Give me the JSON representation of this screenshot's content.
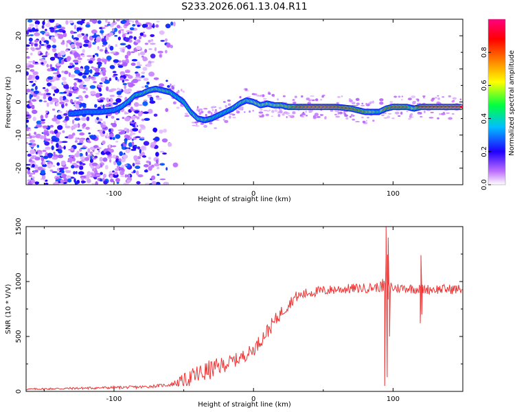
{
  "title": "S233.2026.061.13.04.R11",
  "chart_data": [
    {
      "type": "heatmap",
      "name": "spectrogram",
      "xlabel": "Height of straight line (km)",
      "ylabel": "Frequency (Hz)",
      "xlim": [
        -163,
        150
      ],
      "ylim": [
        -25,
        25
      ],
      "xticks": [
        -100,
        0,
        100
      ],
      "yticks": [
        -20,
        -10,
        0,
        10,
        20
      ],
      "colorbar": {
        "label": "Normalized spectral amplitude",
        "range": [
          0.0,
          1.0
        ],
        "ticks": [
          0.0,
          0.2,
          0.4,
          0.6,
          0.8
        ],
        "colors": [
          "#ffffff",
          "#c070ff",
          "#2000ff",
          "#00c0ff",
          "#00ff40",
          "#ffff00",
          "#ff8000",
          "#ff0000",
          "#ff0080"
        ]
      },
      "ridge": {
        "x": [
          -130,
          -120,
          -110,
          -100,
          -95,
          -90,
          -85,
          -80,
          -75,
          -70,
          -65,
          -60,
          -55,
          -50,
          -45,
          -40,
          -35,
          -30,
          -25,
          -20,
          -15,
          -10,
          -5,
          0,
          5,
          10,
          15,
          20,
          25,
          30,
          40,
          50,
          60,
          70,
          75,
          80,
          85,
          90,
          95,
          100,
          105,
          110,
          115,
          120,
          130,
          140,
          148
        ],
        "y": [
          -3.5,
          -3,
          -3,
          -2.5,
          -1.5,
          0,
          2,
          2.5,
          3.5,
          4,
          3.5,
          3,
          1.5,
          0,
          -3,
          -5,
          -5.5,
          -5,
          -4,
          -3,
          -2,
          -0.5,
          0.5,
          0,
          -1,
          -0.5,
          -1,
          -1,
          -1.5,
          -1.5,
          -1.5,
          -1.5,
          -1.5,
          -2,
          -2.5,
          -3,
          -3,
          -3,
          -2,
          -1.5,
          -1.5,
          -1.5,
          -2,
          -1.5,
          -1.5,
          -1.5,
          -1.5
        ],
        "amplitude": [
          0.25,
          0.3,
          0.3,
          0.3,
          0.35,
          0.45,
          0.5,
          0.5,
          0.55,
          0.55,
          0.55,
          0.5,
          0.45,
          0.45,
          0.5,
          0.55,
          0.55,
          0.5,
          0.45,
          0.45,
          0.5,
          0.55,
          0.55,
          0.6,
          0.6,
          0.6,
          0.6,
          0.65,
          0.7,
          0.85,
          0.95,
          0.95,
          0.9,
          0.85,
          0.8,
          0.75,
          0.6,
          0.5,
          0.8,
          0.85,
          0.85,
          0.8,
          0.6,
          0.9,
          0.95,
          0.95,
          0.95
        ]
      }
    },
    {
      "type": "line",
      "name": "snr",
      "xlabel": "Height of straight line (km)",
      "ylabel": "SNR (10 * V/V)",
      "xlim": [
        -163,
        150
      ],
      "ylim": [
        0,
        1500
      ],
      "xticks": [
        -100,
        0,
        100
      ],
      "yticks": [
        0,
        500,
        1000,
        1500
      ],
      "color": "#ee3333",
      "envelope": {
        "x": [
          -163,
          -120,
          -80,
          -60,
          -50,
          -40,
          -30,
          -20,
          -10,
          0,
          10,
          20,
          30,
          40,
          60,
          80,
          90,
          95,
          100,
          110,
          120,
          130,
          150
        ],
        "y": [
          20,
          30,
          40,
          60,
          100,
          150,
          200,
          250,
          300,
          380,
          550,
          720,
          860,
          900,
          930,
          940,
          950,
          960,
          940,
          940,
          930,
          930,
          930
        ]
      },
      "noise": {
        "x": [
          -163,
          -60,
          -50,
          -40,
          -30,
          -20,
          -10,
          0,
          10,
          20,
          30,
          60,
          80,
          90,
          100,
          150
        ],
        "amp": [
          8,
          15,
          60,
          100,
          90,
          70,
          60,
          60,
          70,
          60,
          50,
          45,
          45,
          45,
          45,
          45
        ]
      },
      "spikes": [
        {
          "x": 94.0,
          "y": 50
        },
        {
          "x": 95.0,
          "y": 1500
        },
        {
          "x": 95.8,
          "y": 130
        },
        {
          "x": 96.5,
          "y": 1400
        },
        {
          "x": 97.5,
          "y": 500
        },
        {
          "x": 119.5,
          "y": 620
        },
        {
          "x": 120.0,
          "y": 1240
        },
        {
          "x": 120.6,
          "y": 700
        }
      ]
    }
  ]
}
